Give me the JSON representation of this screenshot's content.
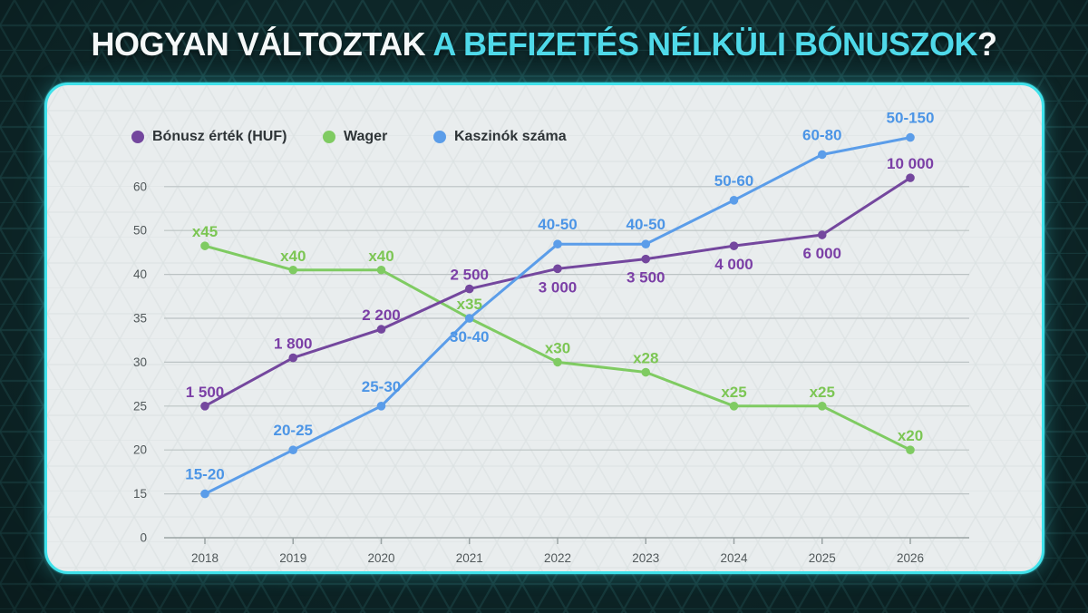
{
  "title": {
    "prefix": "HOGYAN VÁLTOZTAK ",
    "accent": "A BEFIZETÉS NÉLKÜLI BÓNUSZOK",
    "suffix": "?"
  },
  "colors": {
    "background": "#0D2628",
    "title_white": "#F5F8F8",
    "accent_cyan": "#4FD9E9",
    "card_border": "#3FE1EA",
    "card_background": "#E9EDEE",
    "gridline": "#BCC3C4",
    "axis_line": "#9AA3A4",
    "tick_text": "#51585A",
    "legend_text": "#2E3437"
  },
  "chart_data": {
    "type": "line",
    "title": "",
    "xlabel": "",
    "ylabel": "",
    "grid": true,
    "legend_position": "top-left",
    "x_categories": [
      "2018",
      "2019",
      "2020",
      "2021",
      "2022",
      "2023",
      "2024",
      "2025",
      "2026"
    ],
    "y_axis_ticks": [
      "0",
      "15",
      "20",
      "25",
      "30",
      "35",
      "40",
      "50",
      "60"
    ],
    "series": [
      {
        "name": "Bónusz érték (HUF)",
        "color": "#74479E",
        "label_color": "#7B3FA6",
        "values": [
          1500,
          1800,
          2200,
          2500,
          3000,
          3500,
          4000,
          6000,
          10000
        ],
        "point_labels": [
          "1 500",
          "1 800",
          "2 200",
          "2 500",
          "3 000",
          "3 500",
          "4 000",
          "6 000",
          "10 000"
        ],
        "axis_positions": [
          3,
          4.1,
          4.75,
          5.67,
          6.13,
          6.35,
          6.65,
          6.9,
          8.2
        ],
        "label_side": [
          "above",
          "above",
          "above",
          "above",
          "below",
          "below",
          "below",
          "below",
          "above"
        ]
      },
      {
        "name": "Wager",
        "color": "#7FCB62",
        "label_color": "#7CC654",
        "values": [
          45,
          40,
          40,
          35,
          30,
          28,
          25,
          25,
          20
        ],
        "point_labels": [
          "x45",
          "x40",
          "x40",
          "x35",
          "x30",
          "x28",
          "x25",
          "x25",
          "x20"
        ],
        "axis_positions": [
          6.65,
          6.1,
          6.1,
          5.0,
          4,
          3.77,
          3,
          3,
          2
        ],
        "label_side": [
          "above",
          "above",
          "above",
          "above",
          "above",
          "above",
          "above",
          "above",
          "above"
        ]
      },
      {
        "name": "Kaszinók száma",
        "color": "#5B9DE9",
        "label_color": "#4C95E6",
        "values": [
          "15-20",
          "20-25",
          "25-30",
          "30-40",
          "40-50",
          "40-50",
          "50-60",
          "60-80",
          "50-150"
        ],
        "point_labels": [
          "15-20",
          "20-25",
          "25-30",
          "30-40",
          "40-50",
          "40-50",
          "50-60",
          "60-80",
          "50-150"
        ],
        "axis_positions": [
          1,
          2,
          3,
          5.0,
          6.69,
          6.69,
          7.69,
          8.73,
          9.12
        ],
        "label_side": [
          "above",
          "above",
          "above",
          "below",
          "above",
          "above",
          "above",
          "above",
          "above"
        ]
      }
    ]
  }
}
